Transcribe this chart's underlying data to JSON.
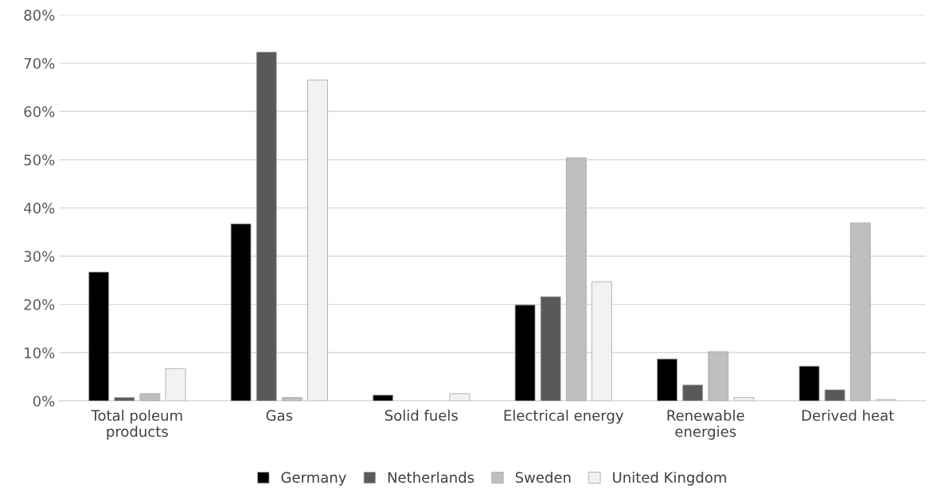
{
  "chart_data": {
    "type": "bar",
    "categories": [
      "Total poleum\nproducts",
      "Gas",
      "Solid fuels",
      "Electrical energy",
      "Renewable\nenergies",
      "Derived heat"
    ],
    "series": [
      {
        "name": "Germany",
        "color": "#000000",
        "values": [
          26.7,
          36.7,
          1.2,
          19.9,
          8.7,
          7.2
        ]
      },
      {
        "name": "Netherlands",
        "color": "#595959",
        "values": [
          0.7,
          72.3,
          0,
          21.6,
          3.3,
          2.3
        ]
      },
      {
        "name": "Sweden",
        "color": "#bfbfbf",
        "values": [
          1.5,
          0.7,
          0,
          50.4,
          10.2,
          36.9
        ]
      },
      {
        "name": "United Kingdom",
        "color": "#f2f2f2",
        "values": [
          6.7,
          66.5,
          1.5,
          24.7,
          0.7,
          0.3
        ]
      }
    ],
    "ylim": [
      0,
      80
    ],
    "yticks": [
      {
        "value": 0,
        "label": "0%"
      },
      {
        "value": 10,
        "label": "10%"
      },
      {
        "value": 20,
        "label": "20%"
      },
      {
        "value": 30,
        "label": "30%"
      },
      {
        "value": 40,
        "label": "40%"
      },
      {
        "value": 50,
        "label": "50%"
      },
      {
        "value": 60,
        "label": "60%"
      },
      {
        "value": 70,
        "label": "70%"
      },
      {
        "value": 80,
        "label": "80%"
      }
    ],
    "grid": "y",
    "legend": "bottom"
  }
}
